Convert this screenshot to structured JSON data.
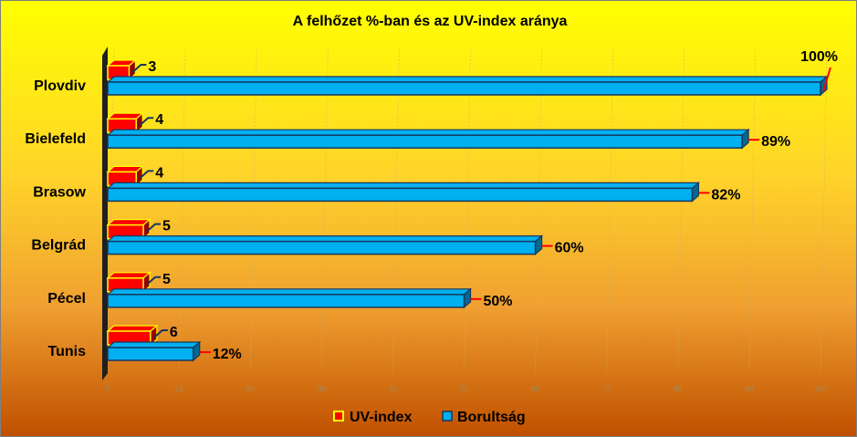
{
  "chart_data": {
    "type": "bar",
    "orientation": "horizontal",
    "title": "A felhőzet %-ban és az UV-index aránya",
    "categories": [
      "Plovdiv",
      "Bielefeld",
      "Brasow",
      "Belgrád",
      "Pécel",
      "Tunis"
    ],
    "series": [
      {
        "name": "UV-index",
        "values": [
          3,
          4,
          4,
          5,
          5,
          6
        ],
        "labels": [
          "3",
          "4",
          "4",
          "5",
          "5",
          "6"
        ],
        "color": "#ff0000",
        "border": "#ffff00"
      },
      {
        "name": "Borultság",
        "values": [
          100,
          89,
          82,
          60,
          50,
          12
        ],
        "labels": [
          "100%",
          "89%",
          "82%",
          "60%",
          "50%",
          "12%"
        ],
        "color": "#00b0f0",
        "border": "#17375e"
      }
    ],
    "xticks": [
      "0",
      "10",
      "20",
      "30",
      "40",
      "50",
      "60",
      "70",
      "80",
      "90",
      "100"
    ],
    "xlim": [
      0,
      100
    ],
    "grid": true,
    "legend": "bottom"
  }
}
